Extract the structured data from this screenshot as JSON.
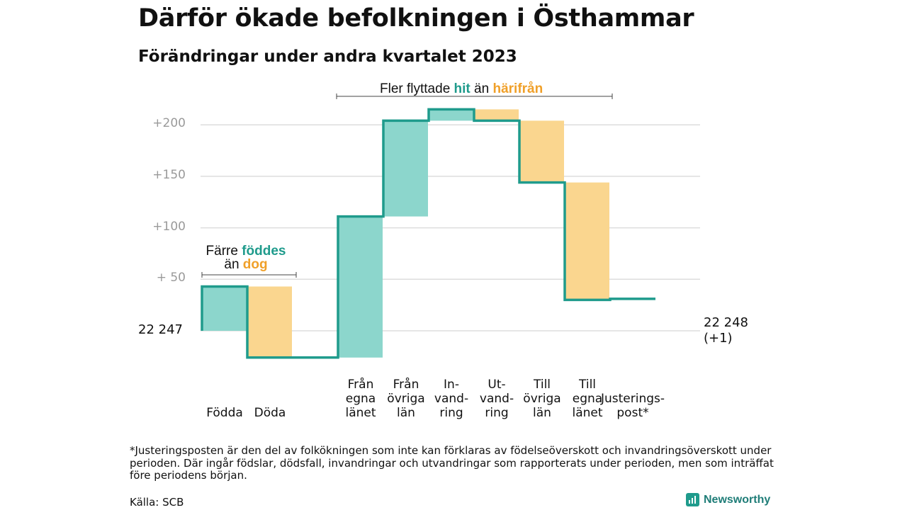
{
  "header": {
    "title": "Därför ökade befolkningen i Östhammar",
    "subtitle": "Förändringar under andra kvartalet 2023"
  },
  "annotations": {
    "migration": {
      "text_before": "Fler flyttade",
      "hit": "hit",
      "middle": "än",
      "harifran": "härifrån"
    },
    "births": {
      "text_before": "Färre",
      "foddes": "föddes",
      "middle": "än",
      "dog": "dog"
    }
  },
  "labels": {
    "start_value": "22  247",
    "end_value": "22 248",
    "end_change": "(+1)"
  },
  "chart_data": {
    "type": "waterfall",
    "title": "Därför ökade befolkningen i Östhammar",
    "subtitle": "Förändringar under andra kvartalet 2023",
    "start": 22247,
    "end": 22248,
    "baseline_offset": 0,
    "y_ticks": [
      {
        "value": 50,
        "label": "+  50"
      },
      {
        "value": 100,
        "label": "+100"
      },
      {
        "value": 150,
        "label": "+150"
      },
      {
        "value": 200,
        "label": "+200"
      }
    ],
    "ylim": [
      -30,
      215
    ],
    "grid": true,
    "steps": [
      {
        "label": "Födda",
        "change": 43,
        "kind": "increase"
      },
      {
        "label": "Döda",
        "change": -69,
        "kind": "decrease"
      },
      {
        "label": "",
        "change": 0,
        "kind": "none"
      },
      {
        "label": "Från\negna\nlänet",
        "change": 137,
        "kind": "increase"
      },
      {
        "label": "Från\növriga\nlän",
        "change": 93,
        "kind": "increase"
      },
      {
        "label": "In-\nvand-\nring",
        "change": 11,
        "kind": "increase"
      },
      {
        "label": "Ut-\nvand-\nring",
        "change": -11,
        "kind": "decrease"
      },
      {
        "label": "Till\növriga\nlän",
        "change": -60,
        "kind": "decrease"
      },
      {
        "label": "Till\negna\nlänet",
        "change": -114,
        "kind": "decrease"
      },
      {
        "label": "Justerings-\npost*",
        "change": 1,
        "kind": "none"
      }
    ],
    "colors": {
      "increase": "#8cd6cc",
      "decrease": "#fad68f",
      "line": "#1f9b8c",
      "grid": "#dddddd"
    }
  },
  "footnote": "*Justeringsposten är den del av folkökningen som inte kan förklaras av födelseöverskott och invandringsöverskott under perioden. Där ingår födslar, dödsfall, invandringar och utvandringar som rapporterats under perioden, men som inträffat före periodens början.",
  "source": "Källa: SCB",
  "brand": {
    "name": "Newsworthy",
    "icon": "bar-chart-icon"
  }
}
